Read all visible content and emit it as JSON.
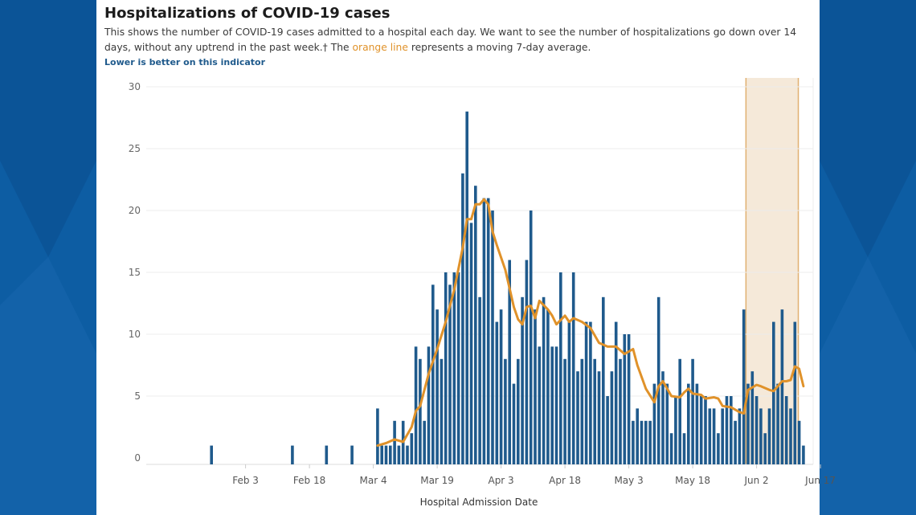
{
  "header": {
    "title": "Hospitalizations of COVID-19 cases",
    "desc_part1": "This shows the number of COVID-19 cases admitted to a hospital each day. We want to see the number of hospitalizations go down over 14 days, without any uptrend in the past week.† The ",
    "desc_highlight": "orange line",
    "desc_part2": " represents a moving 7-day average.",
    "note": "Lower is better on this indicator"
  },
  "colors": {
    "bar": "#1f5a8c",
    "line": "#e0922a",
    "band_fill": "#f5e9d9",
    "band_edge": "#e0b070",
    "background": "#0d5da3"
  },
  "chart_data": {
    "type": "bar",
    "xlabel": "Hospital Admission Date",
    "ylabel": "",
    "ylim": [
      0,
      30
    ],
    "yticks": [
      0,
      5,
      10,
      15,
      20,
      25,
      30
    ],
    "grid": true,
    "x_start": "Jan 25",
    "x_tick_labels": [
      {
        "day": 9,
        "label": "Feb 3"
      },
      {
        "day": 24,
        "label": "Feb 18"
      },
      {
        "day": 39,
        "label": "Mar 4"
      },
      {
        "day": 54,
        "label": "Mar 19"
      },
      {
        "day": 69,
        "label": "Apr 3"
      },
      {
        "day": 84,
        "label": "Apr 18"
      },
      {
        "day": 99,
        "label": "May 3"
      },
      {
        "day": 114,
        "label": "May 18"
      },
      {
        "day": 129,
        "label": "Jun 2"
      },
      {
        "day": 144,
        "label": "Jun 17"
      }
    ],
    "bars": [
      [
        1,
        1
      ],
      [
        20,
        1
      ],
      [
        28,
        1
      ],
      [
        34,
        1
      ],
      [
        40,
        4
      ],
      [
        41,
        1
      ],
      [
        42,
        1
      ],
      [
        43,
        1
      ],
      [
        44,
        3
      ],
      [
        45,
        1
      ],
      [
        46,
        3
      ],
      [
        47,
        1
      ],
      [
        48,
        2
      ],
      [
        49,
        9
      ],
      [
        50,
        8
      ],
      [
        51,
        3
      ],
      [
        52,
        9
      ],
      [
        53,
        14
      ],
      [
        54,
        12
      ],
      [
        55,
        8
      ],
      [
        56,
        15
      ],
      [
        57,
        14
      ],
      [
        58,
        15
      ],
      [
        59,
        15
      ],
      [
        60,
        23
      ],
      [
        61,
        28
      ],
      [
        62,
        19
      ],
      [
        63,
        22
      ],
      [
        64,
        13
      ],
      [
        65,
        21
      ],
      [
        66,
        21
      ],
      [
        67,
        20
      ],
      [
        68,
        11
      ],
      [
        69,
        12
      ],
      [
        70,
        8
      ],
      [
        71,
        16
      ],
      [
        72,
        6
      ],
      [
        73,
        8
      ],
      [
        74,
        13
      ],
      [
        75,
        16
      ],
      [
        76,
        20
      ],
      [
        77,
        12
      ],
      [
        78,
        9
      ],
      [
        79,
        13
      ],
      [
        80,
        12
      ],
      [
        81,
        9
      ],
      [
        82,
        9
      ],
      [
        83,
        15
      ],
      [
        84,
        8
      ],
      [
        85,
        11
      ],
      [
        86,
        15
      ],
      [
        87,
        7
      ],
      [
        88,
        8
      ],
      [
        89,
        11
      ],
      [
        90,
        11
      ],
      [
        91,
        8
      ],
      [
        92,
        7
      ],
      [
        93,
        13
      ],
      [
        94,
        5
      ],
      [
        95,
        7
      ],
      [
        96,
        11
      ],
      [
        97,
        8
      ],
      [
        98,
        10
      ],
      [
        99,
        10
      ],
      [
        100,
        3
      ],
      [
        101,
        4
      ],
      [
        102,
        3
      ],
      [
        103,
        3
      ],
      [
        104,
        3
      ],
      [
        105,
        6
      ],
      [
        106,
        13
      ],
      [
        107,
        7
      ],
      [
        108,
        6
      ],
      [
        109,
        2
      ],
      [
        110,
        5
      ],
      [
        111,
        8
      ],
      [
        112,
        2
      ],
      [
        113,
        6
      ],
      [
        114,
        8
      ],
      [
        115,
        6
      ],
      [
        116,
        5
      ],
      [
        117,
        5
      ],
      [
        118,
        4
      ],
      [
        119,
        4
      ],
      [
        120,
        2
      ],
      [
        121,
        4
      ],
      [
        122,
        5
      ],
      [
        123,
        5
      ],
      [
        124,
        3
      ],
      [
        125,
        4
      ],
      [
        126,
        12
      ],
      [
        127,
        6
      ],
      [
        128,
        7
      ],
      [
        129,
        5
      ],
      [
        130,
        4
      ],
      [
        131,
        2
      ],
      [
        132,
        4
      ],
      [
        133,
        11
      ],
      [
        134,
        6
      ],
      [
        135,
        12
      ],
      [
        136,
        5
      ],
      [
        137,
        4
      ],
      [
        138,
        11
      ],
      [
        139,
        3
      ],
      [
        140,
        1
      ]
    ],
    "moving_avg": [
      [
        40,
        1.0
      ],
      [
        42,
        1.2
      ],
      [
        44,
        1.5
      ],
      [
        46,
        1.3
      ],
      [
        48,
        2.5
      ],
      [
        49,
        3.8
      ],
      [
        50,
        4.2
      ],
      [
        52,
        6.8
      ],
      [
        54,
        8.8
      ],
      [
        56,
        11.0
      ],
      [
        58,
        13.6
      ],
      [
        60,
        17.0
      ],
      [
        61,
        19.3
      ],
      [
        62,
        19.3
      ],
      [
        63,
        20.5
      ],
      [
        64,
        20.5
      ],
      [
        65,
        20.9
      ],
      [
        66,
        20.5
      ],
      [
        67,
        18.3
      ],
      [
        68,
        17.2
      ],
      [
        70,
        15.2
      ],
      [
        72,
        12.2
      ],
      [
        73,
        11.2
      ],
      [
        74,
        10.8
      ],
      [
        75,
        12.2
      ],
      [
        76,
        12.3
      ],
      [
        77,
        11.3
      ],
      [
        78,
        12.7
      ],
      [
        80,
        12.0
      ],
      [
        81,
        11.5
      ],
      [
        82,
        10.8
      ],
      [
        84,
        11.5
      ],
      [
        85,
        11.0
      ],
      [
        86,
        11.3
      ],
      [
        88,
        11.0
      ],
      [
        90,
        10.5
      ],
      [
        92,
        9.3
      ],
      [
        94,
        9.0
      ],
      [
        96,
        9.0
      ],
      [
        98,
        8.4
      ],
      [
        100,
        8.8
      ],
      [
        101,
        7.5
      ],
      [
        103,
        5.6
      ],
      [
        105,
        4.5
      ],
      [
        106,
        5.8
      ],
      [
        107,
        6.2
      ],
      [
        109,
        5.0
      ],
      [
        111,
        4.9
      ],
      [
        112,
        5.3
      ],
      [
        113,
        5.6
      ],
      [
        114,
        5.2
      ],
      [
        116,
        5.1
      ],
      [
        117,
        4.8
      ],
      [
        119,
        4.9
      ],
      [
        120,
        4.8
      ],
      [
        121,
        4.2
      ],
      [
        123,
        4.1
      ],
      [
        125,
        3.7
      ],
      [
        126,
        3.6
      ],
      [
        127,
        5.5
      ],
      [
        129,
        5.9
      ],
      [
        130,
        5.8
      ],
      [
        132,
        5.5
      ],
      [
        133,
        5.4
      ],
      [
        135,
        6.2
      ],
      [
        136,
        6.2
      ],
      [
        137,
        6.3
      ],
      [
        138,
        7.4
      ],
      [
        139,
        7.2
      ],
      [
        140,
        5.8
      ]
    ],
    "highlight_range": [
      126.5,
      138.8
    ]
  }
}
